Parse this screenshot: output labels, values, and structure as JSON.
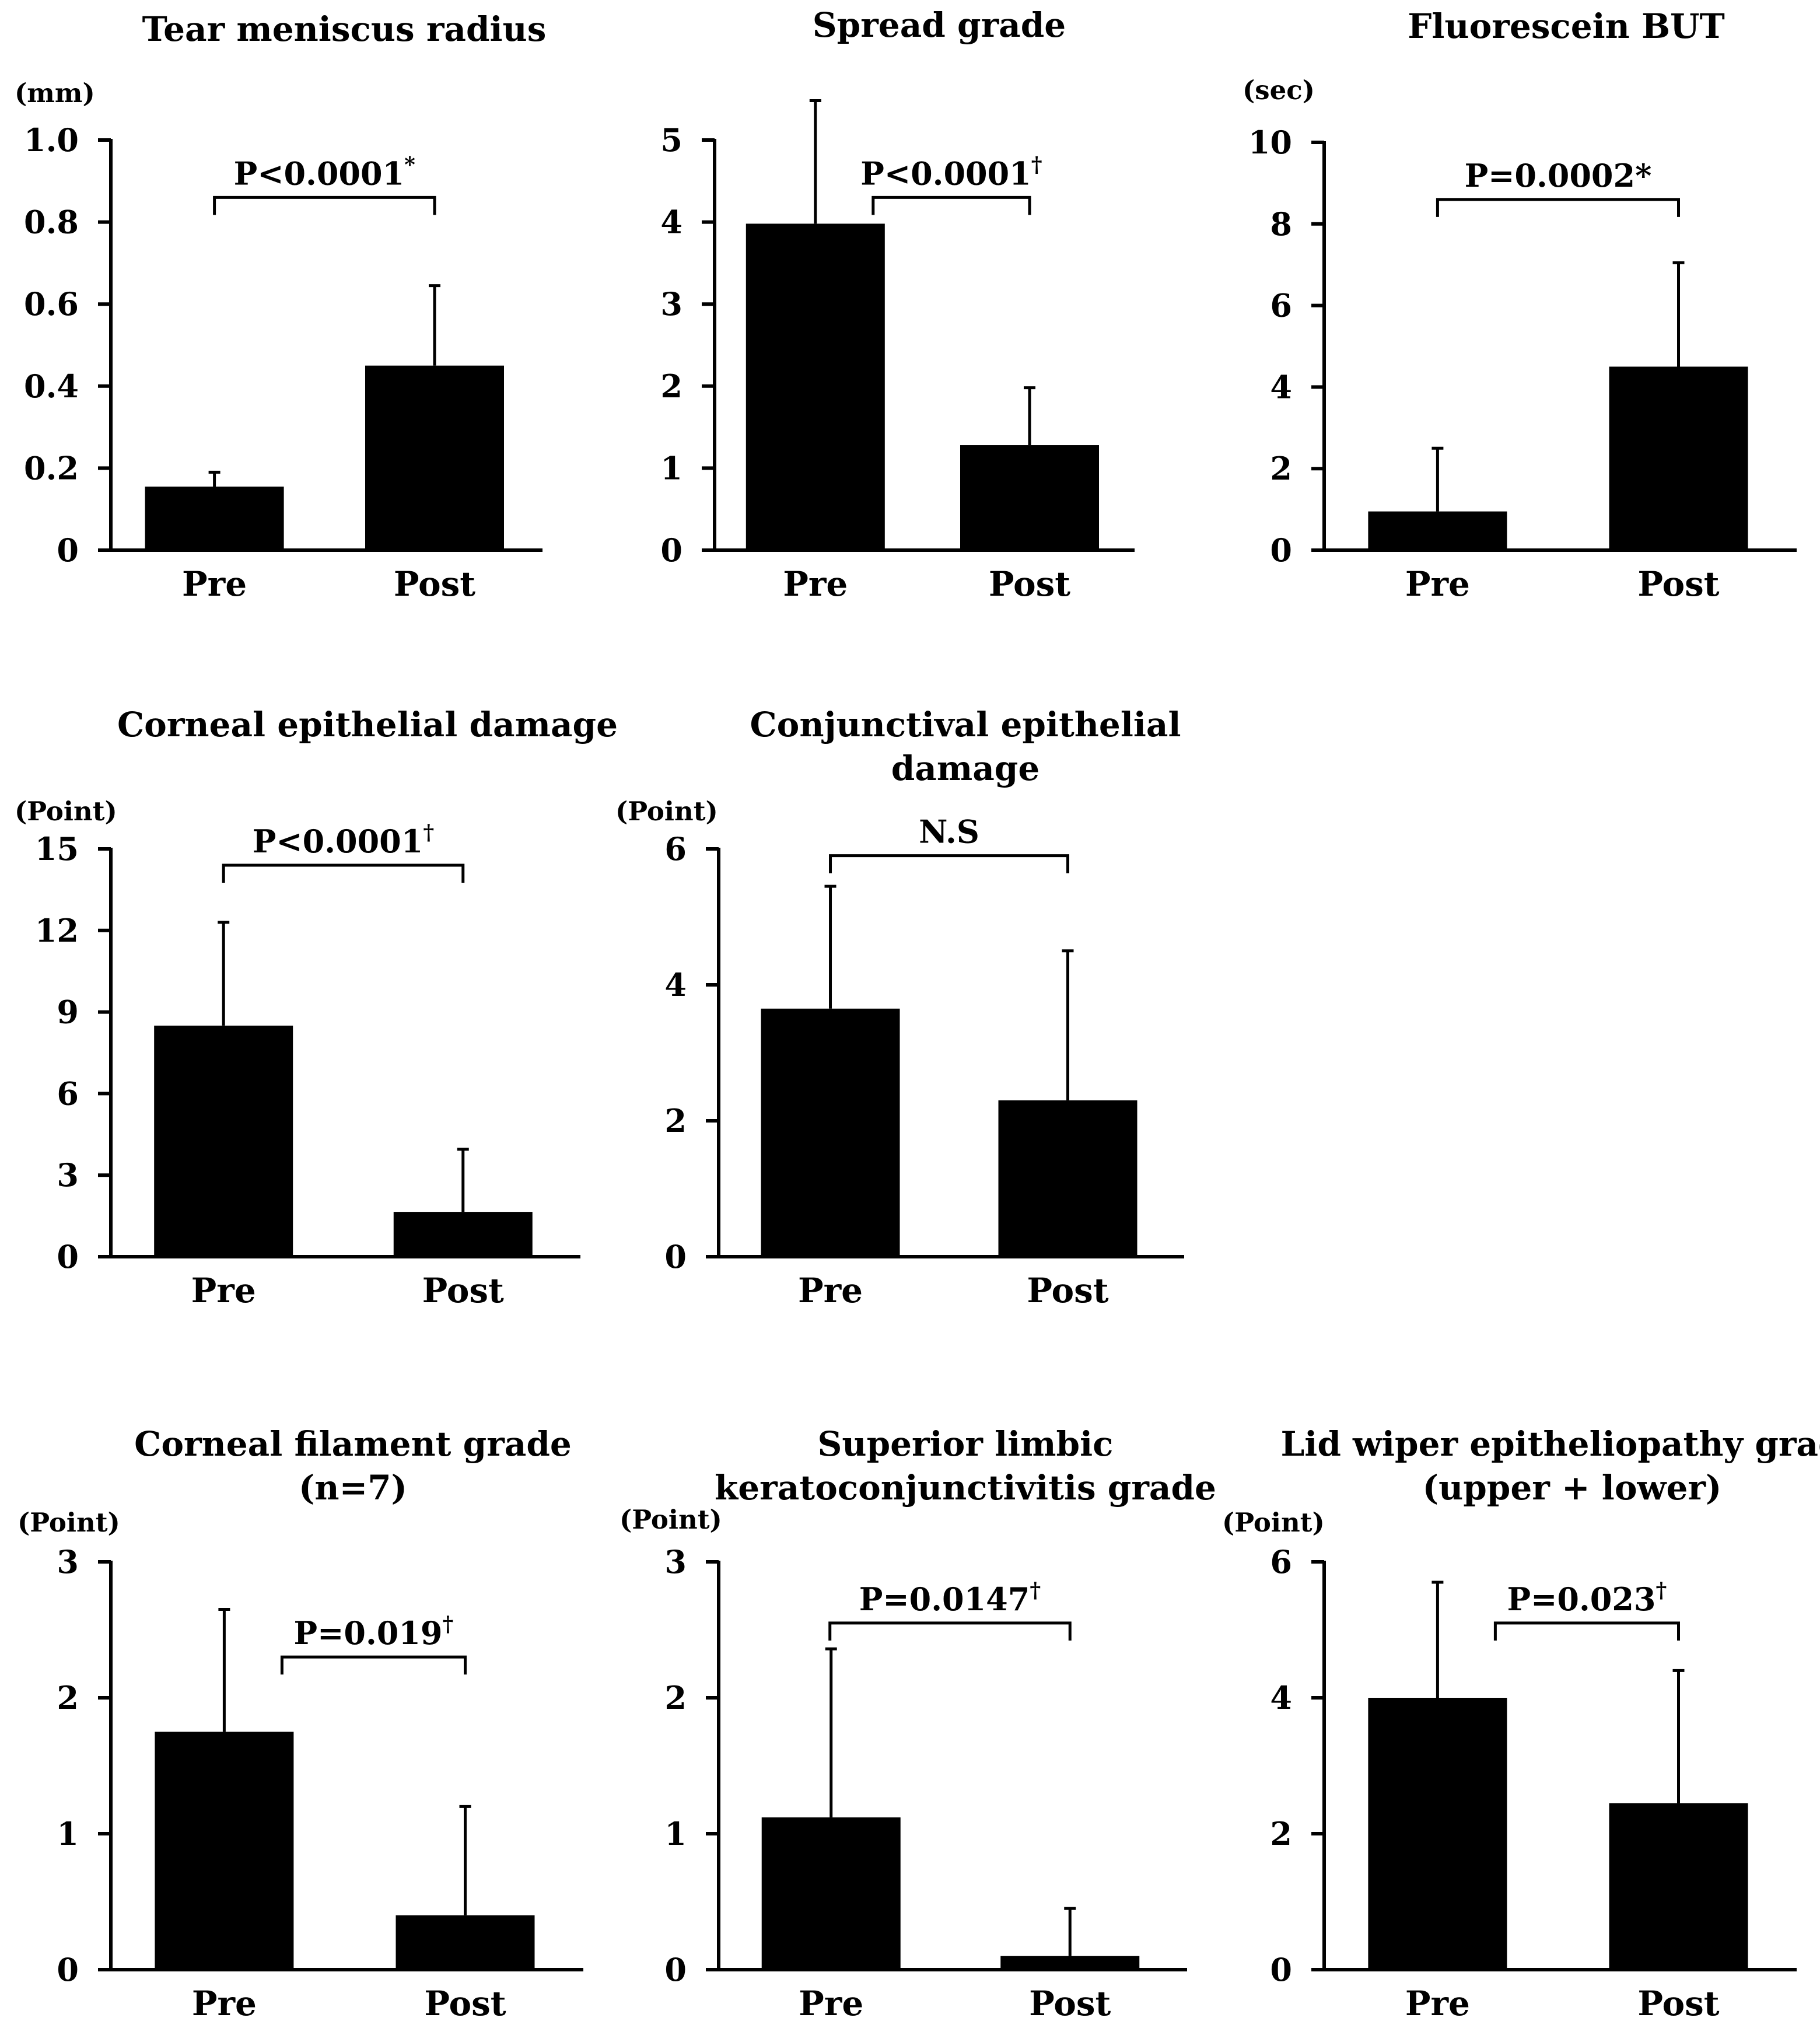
{
  "chart_data": [
    {
      "type": "bar",
      "title": [
        "Tear meniscus radius"
      ],
      "unit": "(mm)",
      "categories": [
        "Pre",
        "Post"
      ],
      "values": [
        0.155,
        0.45
      ],
      "error": [
        0.035,
        0.195
      ],
      "ylim": [
        0,
        1.0
      ],
      "yticks": [
        0,
        0.2,
        0.4,
        0.6,
        0.8,
        1.0
      ],
      "ytick_labels": [
        "0",
        "0.2",
        "0.4",
        "0.6",
        "0.8",
        "1.0"
      ],
      "significance": {
        "label": "P<0.0001",
        "mark": "*",
        "bracket_top": 0.86
      },
      "grid": false
    },
    {
      "type": "bar",
      "title": [
        "Spread grade"
      ],
      "unit": "",
      "categories": [
        "Pre",
        "Post"
      ],
      "values": [
        3.98,
        1.28
      ],
      "error": [
        1.5,
        0.7
      ],
      "ylim": [
        0,
        5
      ],
      "yticks": [
        0,
        1,
        2,
        3,
        4,
        5
      ],
      "ytick_labels": [
        "0",
        "1",
        "2",
        "3",
        "4",
        "5"
      ],
      "significance": {
        "label": "P<0.0001",
        "mark": "†",
        "bracket_top": 4.3
      },
      "grid": false
    },
    {
      "type": "bar",
      "title": [
        "Fluorescein BUT"
      ],
      "unit": "(sec)",
      "categories": [
        "Pre",
        "Post"
      ],
      "values": [
        0.95,
        4.5
      ],
      "error": [
        1.55,
        2.55
      ],
      "ylim": [
        0,
        10
      ],
      "yticks": [
        0,
        2,
        4,
        6,
        8,
        10
      ],
      "ytick_labels": [
        "0",
        "2",
        "4",
        "6",
        "8",
        "10"
      ],
      "significance": {
        "label": "P=0.0002*",
        "mark": "",
        "bracket_top": 8.6
      },
      "grid": false
    },
    {
      "type": "bar",
      "title": [
        "Corneal epithelial damage"
      ],
      "unit": "(Point)",
      "categories": [
        "Pre",
        "Post"
      ],
      "values": [
        8.5,
        1.65
      ],
      "error": [
        3.8,
        2.3
      ],
      "ylim": [
        0,
        15
      ],
      "yticks": [
        0,
        3,
        6,
        9,
        12,
        15
      ],
      "ytick_labels": [
        "0",
        "3",
        "6",
        "9",
        "12",
        "15"
      ],
      "significance": {
        "label": "P<0.0001",
        "mark": "†",
        "bracket_top": 14.4
      },
      "grid": false
    },
    {
      "type": "bar",
      "title": [
        "Conjunctival epithelial",
        "damage"
      ],
      "unit": "(Point)",
      "categories": [
        "Pre",
        "Post"
      ],
      "values": [
        3.65,
        2.3
      ],
      "error": [
        1.8,
        2.2
      ],
      "ylim": [
        0,
        6
      ],
      "yticks": [
        0,
        2,
        4,
        6
      ],
      "ytick_labels": [
        "0",
        "2",
        "4",
        "6"
      ],
      "significance": {
        "label": "N.S",
        "mark": "",
        "bracket_top": 5.9
      },
      "grid": false
    },
    {
      "type": "bar",
      "title": [
        "Corneal filament grade",
        "(n=7)"
      ],
      "unit": "(Point)",
      "categories": [
        "Pre",
        "Post"
      ],
      "values": [
        1.75,
        0.4
      ],
      "error": [
        0.9,
        0.8
      ],
      "ylim": [
        0,
        3
      ],
      "yticks": [
        0,
        1,
        2,
        3
      ],
      "ytick_labels": [
        "0",
        "1",
        "2",
        "3"
      ],
      "significance": {
        "label": "P=0.019",
        "mark": "†",
        "bracket_top": 2.3
      },
      "grid": false
    },
    {
      "type": "bar",
      "title": [
        "Superior limbic",
        "keratoconjunctivitis grade"
      ],
      "unit": "(Point)",
      "categories": [
        "Pre",
        "Post"
      ],
      "values": [
        1.12,
        0.1
      ],
      "error": [
        1.24,
        0.35
      ],
      "ylim": [
        0,
        3
      ],
      "yticks": [
        0,
        1,
        2,
        3
      ],
      "ytick_labels": [
        "0",
        "1",
        "2",
        "3"
      ],
      "significance": {
        "label": "P=0.0147",
        "mark": "†",
        "bracket_top": 2.55
      },
      "grid": false
    },
    {
      "type": "bar",
      "title": [
        "Lid wiper epitheliopathy grade",
        "(upper + lower)"
      ],
      "unit": "(Point)",
      "categories": [
        "Pre",
        "Post"
      ],
      "values": [
        4.0,
        2.45
      ],
      "error": [
        1.7,
        1.95
      ],
      "ylim": [
        0,
        6
      ],
      "yticks": [
        0,
        2,
        4,
        6
      ],
      "ytick_labels": [
        "0",
        "2",
        "4",
        "6"
      ],
      "significance": {
        "label": "P=0.023",
        "mark": "†",
        "bracket_top": 5.1
      },
      "grid": false
    }
  ]
}
